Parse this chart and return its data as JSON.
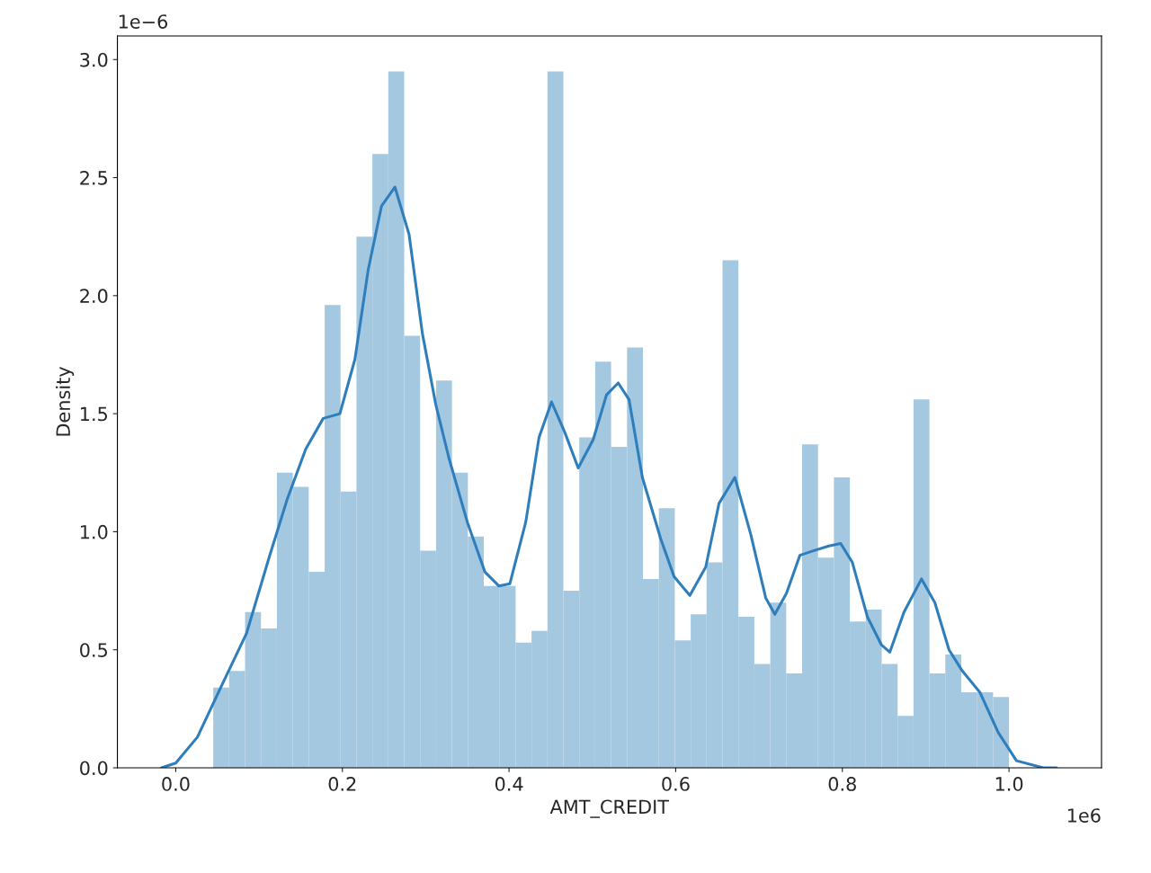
{
  "chart_data": {
    "type": "histogram",
    "xlabel": "AMT_CREDIT",
    "ylabel": "Density",
    "annotations": [
      "1e−6",
      "1e6"
    ],
    "xlim": [
      -0.07,
      1.111
    ],
    "ylim": [
      0,
      3.1
    ],
    "xticks": [
      {
        "value": 0,
        "label": "0.0"
      },
      {
        "value": 0.2,
        "label": "0.2"
      },
      {
        "value": 0.4,
        "label": "0.4"
      },
      {
        "value": 0.6,
        "label": "0.6"
      },
      {
        "value": 0.8,
        "label": "0.8"
      },
      {
        "value": 1.0,
        "label": "1.0"
      }
    ],
    "yticks": [
      {
        "value": 0,
        "label": "0.0"
      },
      {
        "value": 0.5,
        "label": "0.5"
      },
      {
        "value": 1.0,
        "label": "1.0"
      },
      {
        "value": 1.5,
        "label": "1.5"
      },
      {
        "value": 2.0,
        "label": "2.0"
      },
      {
        "value": 2.5,
        "label": "2.5"
      },
      {
        "value": 3.0,
        "label": "3.0"
      }
    ],
    "grid": false,
    "legend": false,
    "series": [
      {
        "type": "histogram",
        "color": "#a5c8e1",
        "bins": [
          0.045,
          0.0641,
          0.0832,
          0.1023,
          0.1214,
          0.1405,
          0.1596,
          0.1787,
          0.1978,
          0.2169,
          0.236,
          0.2551,
          0.2742,
          0.2933,
          0.3124,
          0.3315,
          0.3506,
          0.3697,
          0.3888,
          0.4079,
          0.427,
          0.4461,
          0.4652,
          0.4843,
          0.5034,
          0.5225,
          0.5416,
          0.5607,
          0.5798,
          0.5989,
          0.618,
          0.6371,
          0.6562,
          0.6753,
          0.6944,
          0.7135,
          0.7326,
          0.7517,
          0.7708,
          0.7899,
          0.809,
          0.8281,
          0.8472,
          0.8663,
          0.8854,
          0.9045,
          0.9236,
          0.9427,
          0.9618,
          0.9809,
          1.0
        ],
        "values": [
          0.34,
          0.41,
          0.66,
          0.59,
          1.25,
          1.19,
          0.83,
          1.96,
          1.17,
          2.25,
          2.6,
          2.95,
          1.83,
          0.92,
          1.64,
          1.25,
          0.98,
          0.77,
          0.77,
          0.53,
          0.58,
          2.95,
          0.75,
          1.4,
          1.72,
          1.36,
          1.78,
          0.8,
          1.1,
          0.54,
          0.65,
          0.87,
          2.15,
          0.64,
          0.44,
          0.7,
          0.4,
          1.37,
          0.89,
          1.23,
          0.62,
          0.67,
          0.44,
          0.22,
          1.56,
          0.4,
          0.48,
          0.32,
          0.32,
          0.3
        ]
      },
      {
        "type": "line",
        "color": "#2f7ebc",
        "x": [
          -0.017,
          0.0,
          0.026,
          0.058,
          0.085,
          0.112,
          0.134,
          0.156,
          0.177,
          0.197,
          0.215,
          0.231,
          0.247,
          0.263,
          0.28,
          0.296,
          0.312,
          0.328,
          0.35,
          0.371,
          0.388,
          0.401,
          0.42,
          0.436,
          0.451,
          0.467,
          0.483,
          0.501,
          0.517,
          0.531,
          0.544,
          0.56,
          0.582,
          0.598,
          0.617,
          0.636,
          0.652,
          0.671,
          0.69,
          0.708,
          0.719,
          0.733,
          0.749,
          0.766,
          0.784,
          0.798,
          0.812,
          0.83,
          0.847,
          0.857,
          0.874,
          0.895,
          0.911,
          0.928,
          0.944,
          0.965,
          0.987,
          1.009,
          1.041,
          1.057
        ],
        "values": [
          0.0,
          0.02,
          0.13,
          0.37,
          0.57,
          0.89,
          1.14,
          1.35,
          1.48,
          1.5,
          1.73,
          2.11,
          2.38,
          2.46,
          2.26,
          1.84,
          1.54,
          1.31,
          1.04,
          0.83,
          0.77,
          0.78,
          1.04,
          1.4,
          1.55,
          1.42,
          1.27,
          1.39,
          1.58,
          1.63,
          1.56,
          1.23,
          0.97,
          0.81,
          0.73,
          0.85,
          1.12,
          1.23,
          0.99,
          0.72,
          0.65,
          0.74,
          0.9,
          0.92,
          0.94,
          0.95,
          0.87,
          0.64,
          0.52,
          0.49,
          0.66,
          0.8,
          0.7,
          0.5,
          0.41,
          0.32,
          0.15,
          0.03,
          0.0,
          0.0
        ]
      }
    ]
  }
}
